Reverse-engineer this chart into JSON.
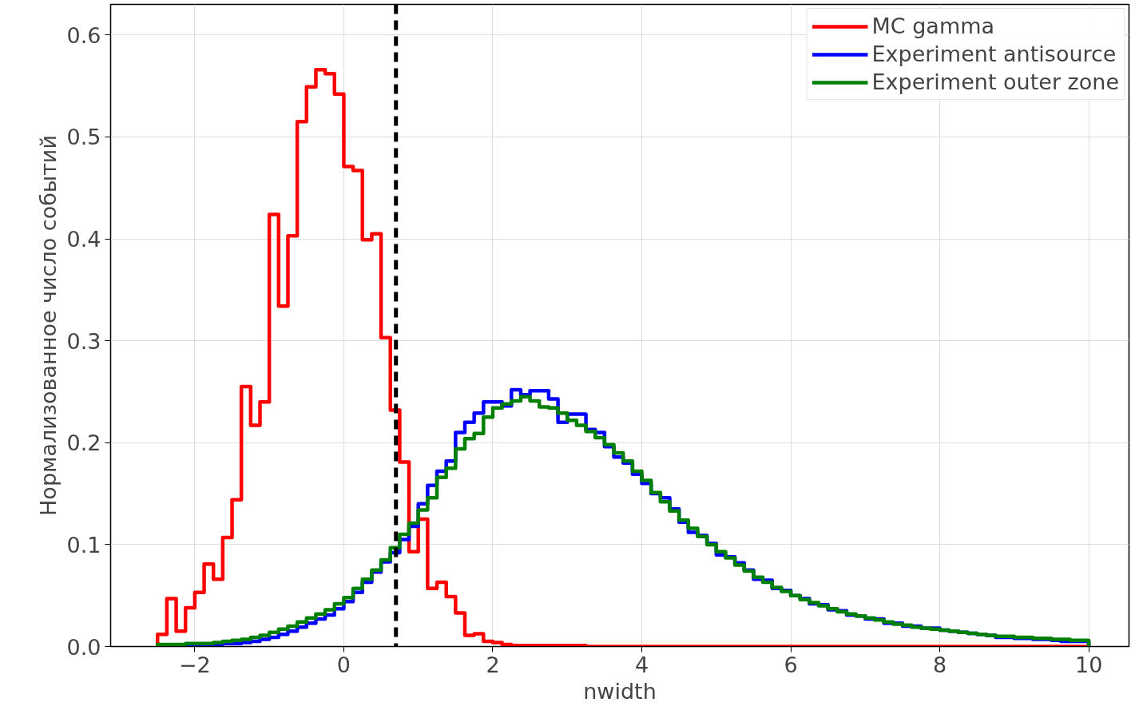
{
  "chart_data": {
    "type": "histogram",
    "xlabel": "nwidth",
    "ylabel": "Нормализованное число событий",
    "bins": [
      -2.5,
      -2.375,
      -2.25,
      -2.125,
      -2.0,
      -1.875,
      -1.75,
      -1.625,
      -1.5,
      -1.375,
      -1.25,
      -1.125,
      -1.0,
      -0.875,
      -0.75,
      -0.625,
      -0.5,
      -0.375,
      -0.25,
      -0.125,
      0.0,
      0.125,
      0.25,
      0.375,
      0.5,
      0.625,
      0.75,
      0.875,
      1.0,
      1.125,
      1.25,
      1.375,
      1.5,
      1.625,
      1.75,
      1.875,
      2.0,
      2.125,
      2.25,
      2.375,
      2.5,
      2.625,
      2.75,
      2.875,
      3.0,
      3.125,
      3.25,
      3.375,
      3.5,
      3.625,
      3.75,
      3.875,
      4.0,
      4.125,
      4.25,
      4.375,
      4.5,
      4.625,
      4.75,
      4.875,
      5.0,
      5.125,
      5.25,
      5.375,
      5.5,
      5.625,
      5.75,
      5.875,
      6.0,
      6.125,
      6.25,
      6.375,
      6.5,
      6.625,
      6.75,
      6.875,
      7.0,
      7.125,
      7.25,
      7.375,
      7.5,
      7.625,
      7.75,
      7.875,
      8.0,
      8.125,
      8.25,
      8.375,
      8.5,
      8.625,
      8.75,
      8.875,
      9.0,
      9.125,
      9.25,
      9.375,
      9.5,
      9.625,
      9.75,
      9.875,
      10.0
    ],
    "series": [
      {
        "name": "MC gamma",
        "color": "#ff0000",
        "values": [
          0.012,
          0.047,
          0.015,
          0.038,
          0.053,
          0.081,
          0.066,
          0.107,
          0.144,
          0.255,
          0.217,
          0.24,
          0.424,
          0.334,
          0.403,
          0.515,
          0.549,
          0.566,
          0.562,
          0.542,
          0.471,
          0.467,
          0.399,
          0.405,
          0.303,
          0.232,
          0.181,
          0.093,
          0.125,
          0.057,
          0.063,
          0.049,
          0.033,
          0.011,
          0.0125,
          0.005,
          0.004,
          0.002,
          0.001,
          0.001,
          0.001,
          0.001,
          0.001,
          0.001,
          0.001,
          0.001,
          0,
          0,
          0,
          0,
          0,
          0,
          0,
          0,
          0,
          0,
          0,
          0,
          0,
          0,
          0,
          0,
          0,
          0,
          0,
          0,
          0,
          0,
          0,
          0,
          0,
          0,
          0,
          0,
          0,
          0,
          0,
          0,
          0,
          0,
          0,
          0,
          0,
          0,
          0,
          0,
          0,
          0,
          0,
          0,
          0,
          0,
          0,
          0,
          0,
          0,
          0,
          0,
          0,
          0
        ]
      },
      {
        "name": "Experiment antisource",
        "color": "#0000ff",
        "values": [
          0.001,
          0.001,
          0.001,
          0.001,
          0.002,
          0.002,
          0.002,
          0.003,
          0.003,
          0.004,
          0.005,
          0.007,
          0.009,
          0.012,
          0.015,
          0.019,
          0.023,
          0.027,
          0.031,
          0.037,
          0.044,
          0.053,
          0.063,
          0.073,
          0.083,
          0.092,
          0.105,
          0.118,
          0.14,
          0.158,
          0.172,
          0.182,
          0.21,
          0.22,
          0.229,
          0.24,
          0.24,
          0.236,
          0.252,
          0.247,
          0.251,
          0.251,
          0.243,
          0.22,
          0.228,
          0.228,
          0.213,
          0.21,
          0.196,
          0.186,
          0.18,
          0.169,
          0.16,
          0.15,
          0.146,
          0.135,
          0.122,
          0.112,
          0.109,
          0.101,
          0.09,
          0.088,
          0.082,
          0.075,
          0.066,
          0.065,
          0.057,
          0.055,
          0.05,
          0.047,
          0.042,
          0.041,
          0.036,
          0.035,
          0.031,
          0.03,
          0.027,
          0.027,
          0.023,
          0.023,
          0.02,
          0.02,
          0.018,
          0.018,
          0.016,
          0.015,
          0.014,
          0.013,
          0.012,
          0.011,
          0.009,
          0.009,
          0.008,
          0.008,
          0.007,
          0.007,
          0.006,
          0.005,
          0.005,
          0.005
        ]
      },
      {
        "name": "Experiment outer zone",
        "color": "#008000",
        "values": [
          0.002,
          0.002,
          0.002,
          0.003,
          0.003,
          0.003,
          0.004,
          0.005,
          0.006,
          0.007,
          0.009,
          0.011,
          0.014,
          0.017,
          0.02,
          0.024,
          0.028,
          0.032,
          0.036,
          0.042,
          0.048,
          0.057,
          0.066,
          0.075,
          0.085,
          0.097,
          0.11,
          0.121,
          0.134,
          0.146,
          0.166,
          0.175,
          0.194,
          0.204,
          0.209,
          0.225,
          0.234,
          0.238,
          0.241,
          0.245,
          0.241,
          0.235,
          0.234,
          0.229,
          0.222,
          0.217,
          0.211,
          0.205,
          0.198,
          0.19,
          0.182,
          0.172,
          0.163,
          0.151,
          0.142,
          0.133,
          0.124,
          0.116,
          0.108,
          0.1,
          0.093,
          0.087,
          0.08,
          0.074,
          0.068,
          0.063,
          0.058,
          0.054,
          0.05,
          0.046,
          0.043,
          0.04,
          0.037,
          0.034,
          0.032,
          0.03,
          0.028,
          0.026,
          0.024,
          0.022,
          0.021,
          0.019,
          0.018,
          0.017,
          0.016,
          0.015,
          0.014,
          0.013,
          0.012,
          0.011,
          0.01,
          0.01,
          0.009,
          0.009,
          0.008,
          0.008,
          0.007,
          0.007,
          0.006,
          0.006
        ]
      }
    ],
    "xlim": [
      -3.13,
      10.54
    ],
    "ylim": [
      0,
      0.63
    ],
    "xticks": [
      {
        "value": -2,
        "label": "−2"
      },
      0,
      2,
      4,
      6,
      8,
      10
    ],
    "yticks": [
      {
        "value": 0,
        "label": "0.0"
      },
      0.1,
      0.2,
      0.3,
      0.4,
      0.5,
      0.6
    ],
    "ref_lines": [
      {
        "axis": "x",
        "value": 0.7,
        "label": null,
        "color": "#000000",
        "line_style": "dashed"
      }
    ],
    "grid": true,
    "legend": "top right"
  }
}
